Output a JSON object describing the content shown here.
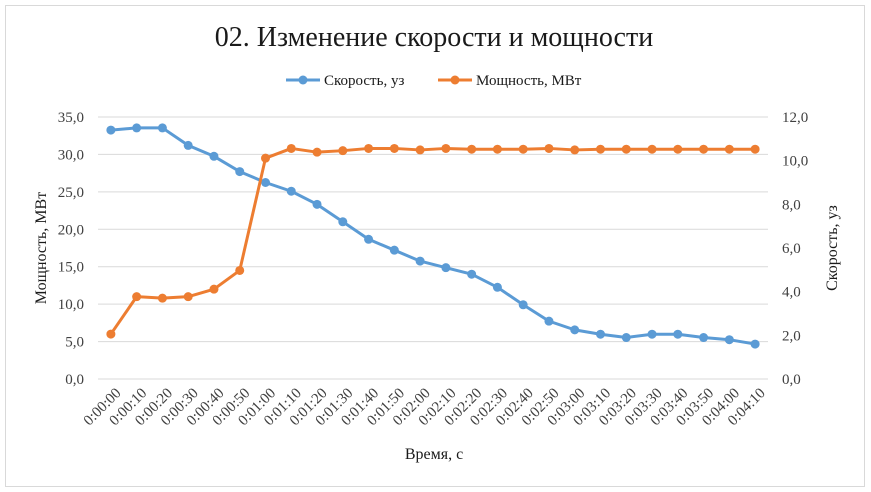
{
  "chart_data": {
    "type": "line",
    "title": "02. Изменение скорости и мощности",
    "xlabel": "Время, с",
    "ylabel_left": "Мощность, МВт",
    "ylabel_right": "Скорость, уз",
    "ylim_left": [
      0,
      35
    ],
    "ylim_right": [
      0,
      12
    ],
    "yticks_left": [
      "0,0",
      "5,0",
      "10,0",
      "15,0",
      "20,0",
      "25,0",
      "30,0",
      "35,0"
    ],
    "yticks_right": [
      "0,0",
      "2,0",
      "4,0",
      "6,0",
      "8,0",
      "10,0",
      "12,0"
    ],
    "grid": true,
    "legend_position": "top",
    "categories": [
      "0:00:00",
      "0:00:10",
      "0:00:20",
      "0:00:30",
      "0:00:40",
      "0:00:50",
      "0:01:00",
      "0:01:10",
      "0:01:20",
      "0:01:30",
      "0:01:40",
      "0:01:50",
      "0:02:00",
      "0:02:10",
      "0:02:20",
      "0:02:30",
      "0:02:40",
      "0:02:50",
      "0:03:00",
      "0:03:10",
      "0:03:20",
      "0:03:30",
      "0:03:40",
      "0:03:50",
      "0:04:00",
      "0:04:10"
    ],
    "series": [
      {
        "name": "Скорость, уз",
        "axis": "right",
        "color": "#5b9bd5",
        "values": [
          11.4,
          11.5,
          11.5,
          10.7,
          10.2,
          9.5,
          9.0,
          8.6,
          8.0,
          7.2,
          6.4,
          5.9,
          5.4,
          5.1,
          4.8,
          4.2,
          3.4,
          2.65,
          2.25,
          2.05,
          1.9,
          2.05,
          2.05,
          1.9,
          1.8,
          1.6
        ]
      },
      {
        "name": "Мощность, МВт",
        "axis": "left",
        "color": "#ed7d31",
        "values": [
          6.0,
          11.0,
          10.8,
          11.0,
          12.0,
          14.5,
          29.5,
          30.8,
          30.3,
          30.5,
          30.8,
          30.8,
          30.6,
          30.8,
          30.7,
          30.7,
          30.7,
          30.8,
          30.6,
          30.7,
          30.7,
          30.7,
          30.7,
          30.7,
          30.7,
          30.7
        ]
      }
    ]
  }
}
